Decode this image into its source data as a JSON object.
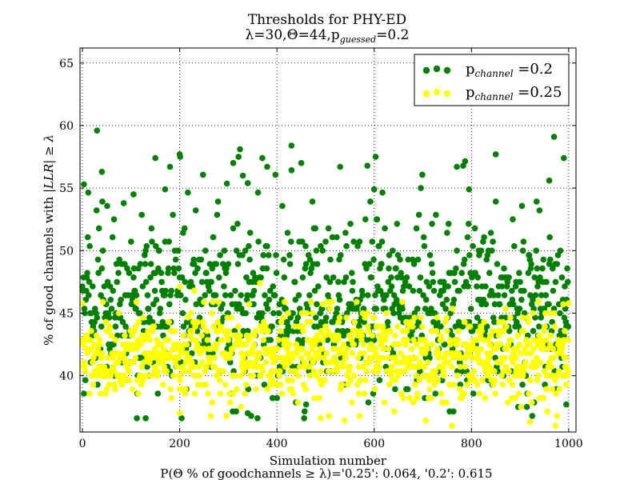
{
  "chart_data": {
    "type": "scatter",
    "title": "Thresholds for PHY-ED",
    "subtitle_parts": [
      "λ=30,Θ=44,p",
      "guessed",
      "=0.2"
    ],
    "xlabel": "Simulation number",
    "ylabel_parts": [
      "% of good channels with |",
      "LLR",
      "| ≥ ",
      "λ"
    ],
    "footnote": "P(Θ % of goodchannels ≥ λ)='0.25': 0.064, '0.2': 0.615",
    "xlim": [
      -5,
      1015
    ],
    "ylim": [
      35.5,
      66.2
    ],
    "x_ticks": [
      0,
      200,
      400,
      600,
      800,
      1000
    ],
    "y_ticks": [
      40,
      45,
      50,
      55,
      60,
      65
    ],
    "grid": true,
    "legend_position": "top-right",
    "n_points": 1000,
    "series": [
      {
        "name_base": "p",
        "name_sub": "channel",
        "name_value": " =0.2",
        "color": "#007f00",
        "mean": 45.2,
        "spread": 3.3,
        "min": 36.6,
        "max": 59.6,
        "highlights": [
          [
            3,
            55.3
          ],
          [
            30,
            59.6
          ],
          [
            40,
            56.3
          ],
          [
            85,
            53.8
          ],
          [
            105,
            54.5
          ],
          [
            130,
            36.6
          ],
          [
            150,
            57.4
          ],
          [
            170,
            54.9
          ],
          [
            180,
            56.7
          ],
          [
            200,
            57.7
          ],
          [
            310,
            57.0
          ],
          [
            330,
            56.0
          ],
          [
            340,
            55.4
          ],
          [
            370,
            57.4
          ],
          [
            380,
            56.7
          ],
          [
            430,
            58.4
          ],
          [
            450,
            57.0
          ],
          [
            530,
            56.7
          ],
          [
            600,
            54.9
          ],
          [
            770,
            56.7
          ],
          [
            795,
            54.9
          ],
          [
            850,
            57.7
          ],
          [
            960,
            55.6
          ],
          [
            970,
            59.1
          ],
          [
            990,
            57.4
          ],
          [
            995,
            37.7
          ],
          [
            340,
            37.0
          ],
          [
            460,
            37.7
          ]
        ]
      },
      {
        "name_base": "p",
        "name_sub": "channel",
        "name_value": " =0.25",
        "color": "#ffff00",
        "mean": 41.6,
        "spread": 1.8,
        "min": 36.0,
        "max": 47.4,
        "highlights": [
          [
            0,
            45.8
          ],
          [
            200,
            47.1
          ],
          [
            200,
            37.0
          ],
          [
            230,
            46.8
          ],
          [
            365,
            47.4
          ],
          [
            490,
            36.6
          ],
          [
            760,
            36.0
          ],
          [
            920,
            36.3
          ],
          [
            1000,
            45.8
          ]
        ]
      }
    ]
  }
}
